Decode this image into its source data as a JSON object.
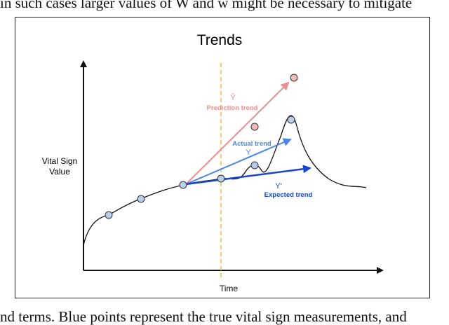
{
  "caption": {
    "top_fragment": "in such cases larger values of W and w might be necessary to mitigate",
    "bottom_fragment": "nd terms. Blue points represent the true vital sign measurements, and"
  },
  "figure": {
    "title": "Trends",
    "y_axis_label_line1": "Vital Sign",
    "y_axis_label_line2": "Value",
    "x_axis_label": "Time",
    "prediction": {
      "symbol": "Ŷ",
      "label": "Prediction trend",
      "color": "#e8908e"
    },
    "actual": {
      "symbol": "Y",
      "label": "Actual trend",
      "color": "#4a86e8"
    },
    "expected": {
      "symbol": "Y'",
      "label": "Expected trend",
      "color": "#1747c8"
    },
    "time_marker_color": "#f0b94a",
    "point_fill_blue": "#b9cdea",
    "point_fill_red": "#f0b8b6"
  }
}
